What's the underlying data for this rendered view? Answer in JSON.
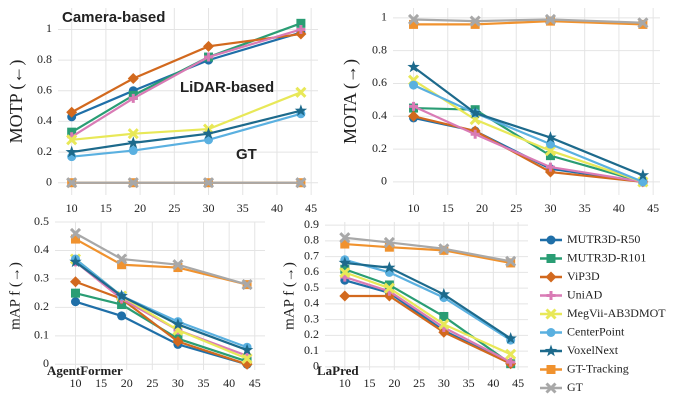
{
  "legend": [
    {
      "name": "MUTR3D-R50",
      "color": "#1f6fa8",
      "marker": "circle"
    },
    {
      "name": "MUTR3D-R101",
      "color": "#2a9d74",
      "marker": "square"
    },
    {
      "name": "ViP3D",
      "color": "#d2691e",
      "marker": "diamond"
    },
    {
      "name": "UniAD",
      "color": "#d97bb5",
      "marker": "plus"
    },
    {
      "name": "MegVii-AB3DMOT",
      "color": "#e8e858",
      "marker": "x"
    },
    {
      "name": "CenterPoint",
      "color": "#5ab0e0",
      "marker": "circle"
    },
    {
      "name": "VoxelNext",
      "color": "#1d6a8c",
      "marker": "star"
    },
    {
      "name": "GT-Tracking",
      "color": "#f0922e",
      "marker": "square"
    },
    {
      "name": "GT",
      "color": "#a8a8a8",
      "marker": "x"
    }
  ],
  "chart_data": [
    {
      "type": "line",
      "y_label": "MOTP (←)",
      "x": [
        10,
        19,
        30,
        43.5
      ],
      "xlim": [
        8,
        46
      ],
      "xticks": [
        10,
        15,
        20,
        25,
        30,
        35,
        40,
        45
      ],
      "ylim": [
        -0.08,
        1.14
      ],
      "yticks": [
        0,
        0.2,
        0.4,
        0.6,
        0.8,
        1
      ],
      "grid": true,
      "annotations": [
        "Camera-based",
        "LiDAR-based",
        "GT"
      ],
      "series": [
        {
          "values": [
            0.43,
            0.6,
            0.8,
            0.98
          ]
        },
        {
          "values": [
            0.33,
            0.57,
            0.82,
            1.04
          ]
        },
        {
          "values": [
            0.46,
            0.68,
            0.89,
            0.97
          ]
        },
        {
          "values": [
            0.3,
            0.55,
            0.82,
            1.0
          ]
        },
        {
          "values": [
            0.28,
            0.32,
            0.35,
            0.59
          ]
        },
        {
          "values": [
            0.17,
            0.21,
            0.28,
            0.45
          ]
        },
        {
          "values": [
            0.2,
            0.26,
            0.32,
            0.47
          ]
        },
        {
          "values": [
            0,
            0,
            0,
            0
          ]
        },
        {
          "values": [
            0,
            0,
            0,
            0
          ]
        }
      ]
    },
    {
      "type": "line",
      "y_label": "MOTA (→)",
      "x": [
        10,
        19,
        30,
        43.5
      ],
      "xlim": [
        7,
        46
      ],
      "xticks": [
        10,
        15,
        20,
        25,
        30,
        35,
        40,
        45
      ],
      "ylim": [
        -0.08,
        1.06
      ],
      "yticks": [
        0,
        0.2,
        0.4,
        0.6,
        0.8,
        1
      ],
      "grid": true,
      "series": [
        {
          "values": [
            0.39,
            0.31,
            0.08,
            0
          ]
        },
        {
          "values": [
            0.45,
            0.44,
            0.16,
            0
          ]
        },
        {
          "values": [
            0.4,
            0.31,
            0.06,
            0
          ]
        },
        {
          "values": [
            0.46,
            0.29,
            0.09,
            0
          ]
        },
        {
          "values": [
            0.62,
            0.38,
            0.19,
            0
          ]
        },
        {
          "values": [
            0.59,
            0.42,
            0.23,
            0
          ]
        },
        {
          "values": [
            0.7,
            0.42,
            0.27,
            0.04
          ]
        },
        {
          "values": [
            0.96,
            0.96,
            0.98,
            0.96
          ]
        },
        {
          "values": [
            0.99,
            0.98,
            0.99,
            0.97
          ]
        }
      ]
    },
    {
      "type": "line",
      "y_label": "mAP f (→)",
      "label": "AgentFormer",
      "x": [
        10,
        19,
        30,
        43.5
      ],
      "xlim": [
        6,
        47
      ],
      "xticks": [
        10,
        15,
        20,
        25,
        30,
        35,
        40,
        45
      ],
      "ylim": [
        -0.02,
        0.5
      ],
      "yticks": [
        0,
        0.1,
        0.2,
        0.3,
        0.4,
        0.5
      ],
      "grid": true,
      "series": [
        {
          "values": [
            0.22,
            0.17,
            0.07,
            0
          ]
        },
        {
          "values": [
            0.25,
            0.21,
            0.09,
            0.01
          ]
        },
        {
          "values": [
            0.29,
            0.23,
            0.08,
            0
          ]
        },
        {
          "values": [
            0.36,
            0.23,
            0.12,
            0.03
          ]
        },
        {
          "values": [
            0.37,
            0.24,
            0.12,
            0.02
          ]
        },
        {
          "values": [
            0.37,
            0.24,
            0.15,
            0.06
          ]
        },
        {
          "values": [
            0.36,
            0.24,
            0.14,
            0.05
          ]
        },
        {
          "values": [
            0.44,
            0.35,
            0.34,
            0.28
          ]
        },
        {
          "values": [
            0.46,
            0.37,
            0.35,
            0.28
          ]
        }
      ]
    },
    {
      "type": "line",
      "y_label": "mAP f (→)",
      "label": "LaPred",
      "x": [
        10,
        19,
        30,
        43.5
      ],
      "xlim": [
        6,
        47
      ],
      "xticks": [
        10,
        15,
        20,
        25,
        30,
        35,
        40,
        45
      ],
      "ylim": [
        -0.02,
        0.92
      ],
      "yticks": [
        0,
        0.1,
        0.2,
        0.3,
        0.4,
        0.5,
        0.6,
        0.7,
        0.8,
        0.9
      ],
      "grid": true,
      "series": [
        {
          "values": [
            0.55,
            0.47,
            0.23,
            0.02
          ]
        },
        {
          "values": [
            0.62,
            0.52,
            0.32,
            0.02
          ]
        },
        {
          "values": [
            0.45,
            0.45,
            0.22,
            0.02
          ]
        },
        {
          "values": [
            0.57,
            0.48,
            0.25,
            0.03
          ]
        },
        {
          "values": [
            0.6,
            0.5,
            0.27,
            0.08
          ]
        },
        {
          "values": [
            0.68,
            0.6,
            0.44,
            0.17
          ]
        },
        {
          "values": [
            0.66,
            0.63,
            0.46,
            0.18
          ]
        },
        {
          "values": [
            0.78,
            0.76,
            0.74,
            0.66
          ]
        },
        {
          "values": [
            0.82,
            0.79,
            0.75,
            0.67
          ]
        }
      ]
    }
  ]
}
